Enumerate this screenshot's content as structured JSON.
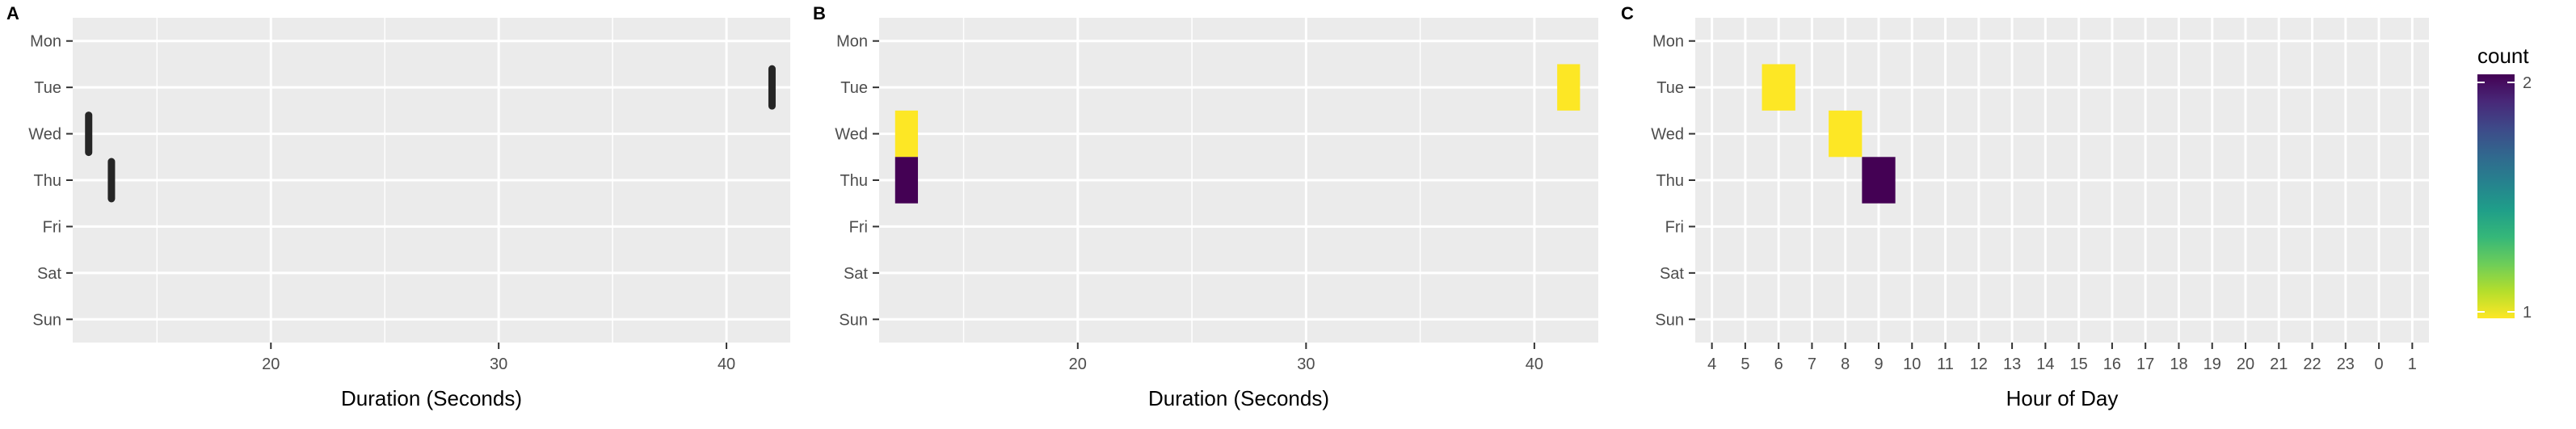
{
  "chart_data": [
    {
      "panel": "A",
      "type": "scatter",
      "title": "",
      "xlabel": "Duration (Seconds)",
      "ylabel": "",
      "xlim": [
        11.3,
        42.8
      ],
      "x_ticks": [
        20,
        30,
        40
      ],
      "x_minor_ticks": [
        15,
        25,
        35
      ],
      "y_categories": [
        "Mon",
        "Tue",
        "Wed",
        "Thu",
        "Fri",
        "Sat",
        "Sun"
      ],
      "mark": "vertical-dash",
      "points": [
        {
          "x": 42.0,
          "y": "Tue"
        },
        {
          "x": 12.0,
          "y": "Wed"
        },
        {
          "x": 13.0,
          "y": "Thu"
        }
      ],
      "mark_color": "#262626",
      "grid": true
    },
    {
      "panel": "B",
      "type": "heatmap",
      "title": "",
      "xlabel": "Duration (Seconds)",
      "ylabel": "",
      "xlim": [
        11.3,
        42.8
      ],
      "x_ticks": [
        20,
        30,
        40
      ],
      "x_minor_ticks": [
        15,
        25,
        35
      ],
      "y_categories": [
        "Mon",
        "Tue",
        "Wed",
        "Thu",
        "Fri",
        "Sat",
        "Sun"
      ],
      "cells": [
        {
          "x0": 41,
          "x1": 42,
          "y": "Tue",
          "count": 1
        },
        {
          "x0": 12,
          "x1": 13,
          "y": "Wed",
          "count": 1
        },
        {
          "x0": 12,
          "x1": 13,
          "y": "Thu",
          "count": 2
        }
      ],
      "grid": true
    },
    {
      "panel": "C",
      "type": "heatmap",
      "title": "",
      "xlabel": "Hour of Day",
      "ylabel": "",
      "x_categories": [
        "4",
        "5",
        "6",
        "7",
        "8",
        "9",
        "10",
        "11",
        "12",
        "13",
        "14",
        "15",
        "16",
        "17",
        "18",
        "19",
        "20",
        "21",
        "22",
        "23",
        "0",
        "1"
      ],
      "y_categories": [
        "Mon",
        "Tue",
        "Wed",
        "Thu",
        "Fri",
        "Sat",
        "Sun"
      ],
      "cells": [
        {
          "x": "6",
          "y": "Tue",
          "count": 1
        },
        {
          "x": "8",
          "y": "Wed",
          "count": 1
        },
        {
          "x": "9",
          "y": "Thu",
          "count": 2
        }
      ],
      "grid": true
    }
  ],
  "legend": {
    "title": "count",
    "min": 1,
    "max": 2,
    "ticks": [
      "1",
      "2"
    ],
    "color_low": "#FDE725",
    "color_high": "#440154",
    "gradient": [
      "#FDE725",
      "#B4DE2C",
      "#6DCD59",
      "#35B779",
      "#1F9E89",
      "#26828E",
      "#31688E",
      "#3E4A89",
      "#482878",
      "#440154"
    ],
    "placement": "right"
  },
  "colors": {
    "panel_background": "#EBEBEB",
    "grid_line": "#FFFFFF",
    "tick_text": "#4D4D4D"
  }
}
